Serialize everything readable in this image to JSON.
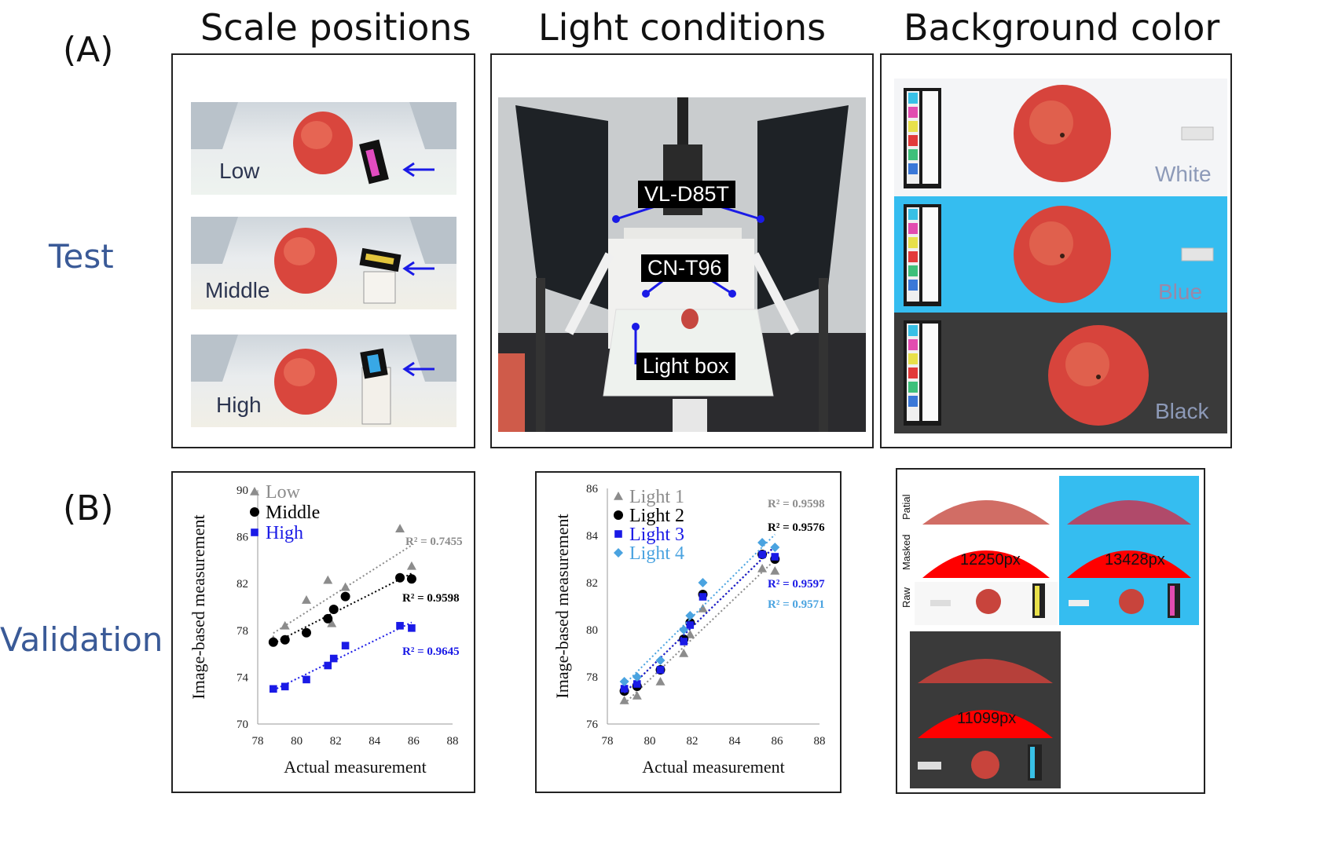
{
  "panel_labels": {
    "a": "(A)",
    "b": "(B)"
  },
  "row_labels": {
    "test": "Test",
    "validation": "Validation"
  },
  "column_titles": {
    "scale": "Scale positions",
    "light": "Light conditions",
    "background": "Background color"
  },
  "scale_photos": [
    {
      "label": "Low"
    },
    {
      "label": "Middle"
    },
    {
      "label": "High"
    }
  ],
  "light_callouts": {
    "lamp": "VL-D85T",
    "camera": "CN-T96",
    "box": "Light box"
  },
  "background_photos": [
    {
      "label": "White",
      "color": "#f4f5f7"
    },
    {
      "label": "Blue",
      "color": "#35bdf0"
    },
    {
      "label": "Black",
      "color": "#3a3a3a"
    }
  ],
  "colors": {
    "gray": "#8c8c8c",
    "black": "#000000",
    "blue": "#1a1ae6",
    "lightblue": "#4aa3e0",
    "label_blue": "#3a5a97"
  },
  "chart_data": [
    {
      "type": "scatter",
      "title": "",
      "xlabel": "Actual measurement",
      "ylabel": "Image-based measurement",
      "xlim": [
        78,
        88
      ],
      "ylim": [
        70,
        90
      ],
      "xticks": [
        78,
        80,
        82,
        84,
        86,
        88
      ],
      "yticks": [
        70,
        74,
        78,
        82,
        86,
        90
      ],
      "legend_position": "top-left",
      "trendlines": true,
      "series": [
        {
          "name": "Low",
          "marker": "triangle",
          "color": "#8c8c8c",
          "r2": "R² = 0.7455",
          "x": [
            78.8,
            79.4,
            80.5,
            81.6,
            81.8,
            82.5,
            85.3,
            85.9
          ],
          "y": [
            77.2,
            78.4,
            80.6,
            82.3,
            78.6,
            81.7,
            86.7,
            83.5
          ]
        },
        {
          "name": "Middle",
          "marker": "circle",
          "color": "#000000",
          "r2": "R² = 0.9598",
          "x": [
            78.8,
            79.4,
            80.5,
            81.6,
            81.9,
            82.5,
            85.3,
            85.9
          ],
          "y": [
            77.0,
            77.2,
            77.8,
            79.0,
            79.8,
            80.9,
            82.5,
            82.4
          ]
        },
        {
          "name": "High",
          "marker": "square",
          "color": "#1a1ae6",
          "r2": "R² = 0.9645",
          "x": [
            78.8,
            79.4,
            80.5,
            81.6,
            81.9,
            82.5,
            85.3,
            85.9
          ],
          "y": [
            73.0,
            73.2,
            73.8,
            75.0,
            75.6,
            76.7,
            78.4,
            78.2
          ]
        }
      ]
    },
    {
      "type": "scatter",
      "title": "",
      "xlabel": "Actual measurement",
      "ylabel": "Image-based measurement",
      "xlim": [
        78,
        88
      ],
      "ylim": [
        76,
        86
      ],
      "xticks": [
        78,
        80,
        82,
        84,
        86,
        88
      ],
      "yticks": [
        76,
        78,
        80,
        82,
        84,
        86
      ],
      "legend_position": "top-left",
      "trendlines": true,
      "series": [
        {
          "name": "Light 1",
          "marker": "triangle",
          "color": "#8c8c8c",
          "r2": "R² = 0.9598",
          "x": [
            78.8,
            79.4,
            80.5,
            81.6,
            81.9,
            82.5,
            85.3,
            85.9
          ],
          "y": [
            77.0,
            77.2,
            77.8,
            79.0,
            79.8,
            80.9,
            82.6,
            82.5
          ]
        },
        {
          "name": "Light 2",
          "marker": "circle",
          "color": "#000000",
          "r2": "R² = 0.9576",
          "x": [
            78.8,
            79.4,
            80.5,
            81.6,
            81.9,
            82.5,
            85.3,
            85.9
          ],
          "y": [
            77.4,
            77.6,
            78.3,
            79.6,
            80.3,
            81.5,
            83.2,
            83.0
          ]
        },
        {
          "name": "Light 3",
          "marker": "square",
          "color": "#1a1ae6",
          "r2": "R² = 0.9597",
          "x": [
            78.8,
            79.4,
            80.5,
            81.6,
            81.9,
            82.5,
            85.3,
            85.9
          ],
          "y": [
            77.5,
            77.7,
            78.3,
            79.5,
            80.2,
            81.4,
            83.2,
            83.1
          ]
        },
        {
          "name": "Light 4",
          "marker": "diamond",
          "color": "#4aa3e0",
          "r2": "R² = 0.9571",
          "x": [
            78.8,
            79.4,
            80.5,
            81.6,
            81.9,
            82.5,
            85.3,
            85.9
          ],
          "y": [
            77.8,
            78.0,
            78.7,
            80.0,
            80.6,
            82.0,
            83.7,
            83.5
          ]
        }
      ]
    }
  ],
  "mask_panels": {
    "row_labels": {
      "partial": "Patial",
      "masked": "Masked",
      "raw": "Raw"
    },
    "items": [
      {
        "pixels": "12250px"
      },
      {
        "pixels": "13428px"
      },
      {
        "pixels": "11099px"
      }
    ]
  }
}
